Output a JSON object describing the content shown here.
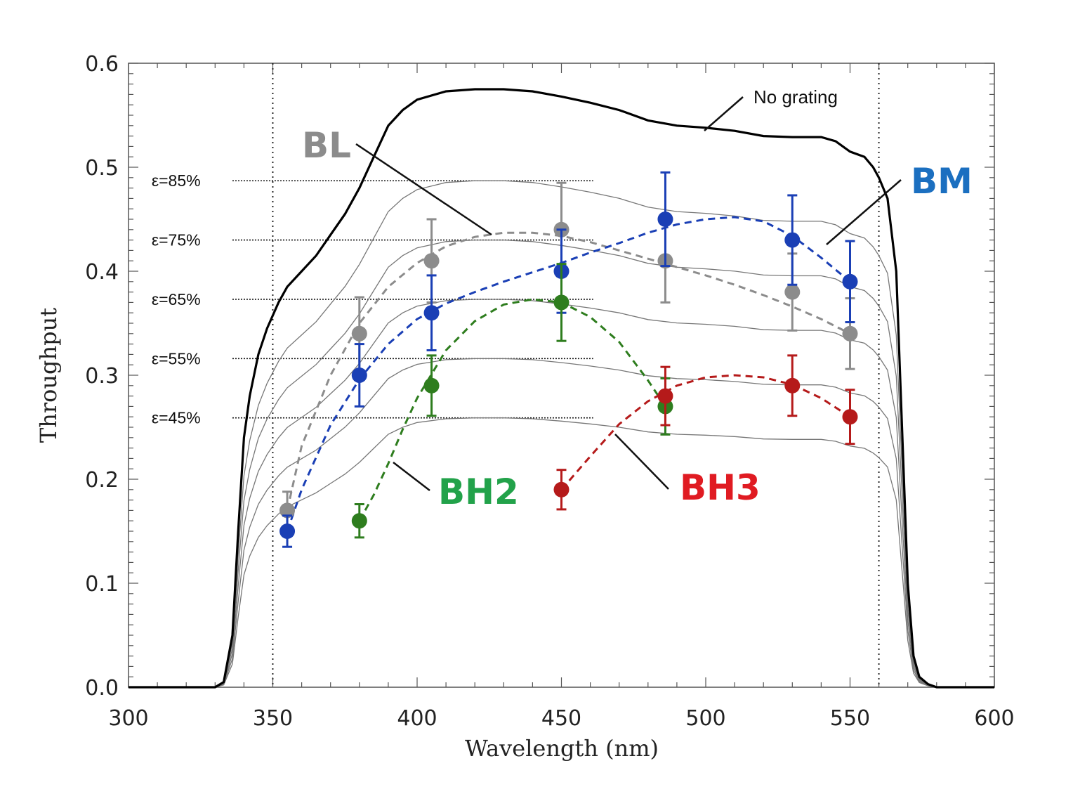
{
  "chart_data": {
    "type": "scatter",
    "xlabel": "Wavelength (nm)",
    "ylabel": "Throughput",
    "xlim": [
      300,
      600
    ],
    "ylim": [
      0,
      0.6
    ],
    "x_ticks": [
      300,
      350,
      400,
      450,
      500,
      550,
      600
    ],
    "y_ticks": [
      0.0,
      0.1,
      0.2,
      0.3,
      0.4,
      0.5,
      0.6
    ],
    "y_tick_labels": [
      "0.0",
      "0.1",
      "0.2",
      "0.3",
      "0.4",
      "0.5",
      "0.6"
    ],
    "vertical_reference_lines": [
      350,
      560
    ],
    "no_grating_label": "No grating",
    "no_grating_curve": {
      "x": [
        300,
        330,
        333,
        336,
        338,
        340,
        342,
        345,
        348,
        352,
        355,
        360,
        365,
        370,
        375,
        380,
        385,
        390,
        395,
        400,
        410,
        420,
        430,
        440,
        450,
        460,
        470,
        480,
        490,
        500,
        510,
        520,
        530,
        540,
        545,
        550,
        555,
        558,
        560,
        563,
        566,
        568,
        570,
        572,
        574,
        577,
        580,
        590,
        600
      ],
      "y": [
        0,
        0,
        0.005,
        0.05,
        0.15,
        0.24,
        0.28,
        0.32,
        0.345,
        0.37,
        0.385,
        0.4,
        0.415,
        0.435,
        0.455,
        0.48,
        0.51,
        0.54,
        0.555,
        0.565,
        0.573,
        0.575,
        0.575,
        0.573,
        0.568,
        0.562,
        0.555,
        0.545,
        0.54,
        0.538,
        0.535,
        0.53,
        0.529,
        0.529,
        0.525,
        0.515,
        0.51,
        0.5,
        0.49,
        0.47,
        0.4,
        0.25,
        0.1,
        0.03,
        0.01,
        0.003,
        0,
        0,
        0
      ]
    },
    "efficiency_levels": [
      {
        "label": "ε=85%",
        "value": 0.487
      },
      {
        "label": "ε=75%",
        "value": 0.43
      },
      {
        "label": "ε=65%",
        "value": 0.373
      },
      {
        "label": "ε=55%",
        "value": 0.316
      },
      {
        "label": "ε=45%",
        "value": 0.259
      }
    ],
    "series": [
      {
        "name": "BL",
        "color": "#8c8c8c",
        "x": [
          355,
          380,
          405,
          450,
          486,
          530,
          550
        ],
        "y": [
          0.17,
          0.34,
          0.41,
          0.44,
          0.41,
          0.38,
          0.34
        ],
        "err": [
          0.018,
          0.035,
          0.04,
          0.045,
          0.04,
          0.037,
          0.034
        ],
        "fit_x": [
          355,
          360,
          370,
          380,
          390,
          400,
          410,
          420,
          430,
          440,
          450,
          460,
          470,
          480,
          490,
          500,
          510,
          520,
          530,
          540,
          550
        ],
        "fit_y": [
          0.17,
          0.232,
          0.3,
          0.35,
          0.385,
          0.408,
          0.424,
          0.433,
          0.437,
          0.437,
          0.434,
          0.428,
          0.42,
          0.412,
          0.404,
          0.396,
          0.387,
          0.377,
          0.366,
          0.354,
          0.34
        ]
      },
      {
        "name": "BM",
        "color": "#1a3fb5",
        "x": [
          355,
          380,
          405,
          450,
          486,
          530,
          550
        ],
        "y": [
          0.15,
          0.3,
          0.36,
          0.4,
          0.45,
          0.43,
          0.39
        ],
        "err": [
          0.015,
          0.03,
          0.036,
          0.04,
          0.045,
          0.043,
          0.039
        ],
        "fit_x": [
          355,
          360,
          370,
          380,
          390,
          400,
          410,
          420,
          430,
          440,
          450,
          460,
          470,
          480,
          490,
          500,
          510,
          520,
          530,
          540,
          550
        ],
        "fit_y": [
          0.15,
          0.19,
          0.252,
          0.296,
          0.33,
          0.354,
          0.369,
          0.38,
          0.39,
          0.399,
          0.408,
          0.418,
          0.427,
          0.437,
          0.445,
          0.45,
          0.452,
          0.448,
          0.434,
          0.413,
          0.39
        ]
      },
      {
        "name": "BH2",
        "color": "#2e7d1e",
        "x": [
          380,
          405,
          450,
          486
        ],
        "y": [
          0.16,
          0.29,
          0.37,
          0.27
        ],
        "err": [
          0.016,
          0.029,
          0.037,
          0.027
        ],
        "fit_x": [
          380,
          385,
          390,
          395,
          400,
          410,
          420,
          430,
          440,
          450,
          460,
          470,
          480,
          486
        ],
        "fit_y": [
          0.16,
          0.185,
          0.215,
          0.248,
          0.278,
          0.324,
          0.352,
          0.368,
          0.373,
          0.37,
          0.356,
          0.332,
          0.295,
          0.27
        ]
      },
      {
        "name": "BH3",
        "color": "#b51a1a",
        "x": [
          450,
          486,
          530,
          550
        ],
        "y": [
          0.19,
          0.28,
          0.29,
          0.26
        ],
        "err": [
          0.019,
          0.028,
          0.029,
          0.026
        ],
        "fit_x": [
          450,
          460,
          470,
          480,
          490,
          500,
          510,
          520,
          530,
          540,
          550
        ],
        "fit_y": [
          0.19,
          0.222,
          0.253,
          0.275,
          0.29,
          0.298,
          0.3,
          0.298,
          0.291,
          0.278,
          0.26
        ]
      }
    ],
    "series_label_colors": {
      "BL": "#8c8c8c",
      "BM": "#1b6fc0",
      "BH2": "#22a24a",
      "BH3": "#e01b22"
    },
    "grid": false
  }
}
